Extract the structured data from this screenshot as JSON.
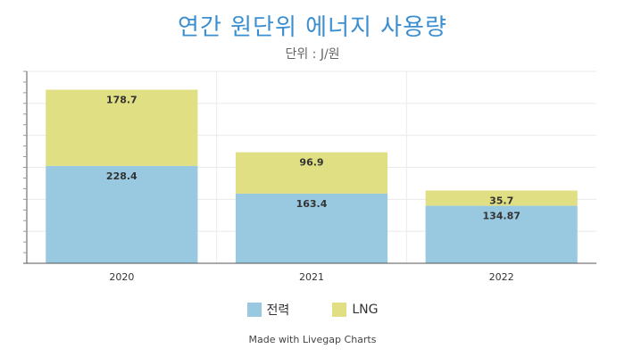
{
  "chart_data": {
    "type": "bar",
    "stacked": true,
    "title": "연간 원단위 에너지 사용량",
    "subtitle": "단위 : J/원",
    "categories": [
      "2020",
      "2021",
      "2022"
    ],
    "series": [
      {
        "name": "전력",
        "values": [
          228.4,
          163.4,
          134.87
        ],
        "labels": [
          "228.4",
          "163.4",
          "134.87"
        ],
        "color": "#99c9e0"
      },
      {
        "name": "LNG",
        "values": [
          178.7,
          96.9,
          35.7
        ],
        "labels": [
          "178.7",
          "96.9",
          "35.7"
        ],
        "color": "#e0df84"
      }
    ],
    "ylim": [
      0,
      450
    ],
    "grid": true,
    "legend_position": "bottom"
  },
  "footer": {
    "credit": "Made with Livegap Charts"
  }
}
